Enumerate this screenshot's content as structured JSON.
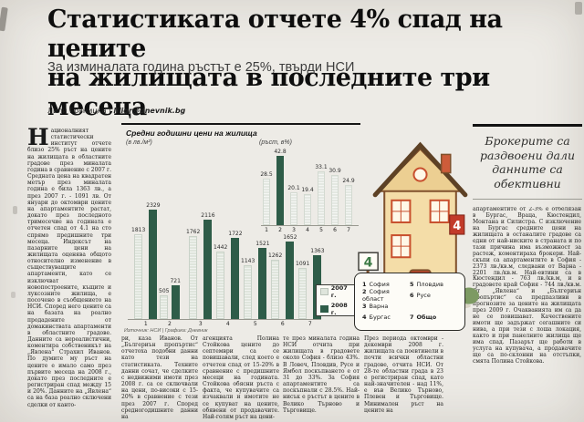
{
  "page": {
    "headline_line1": "Статистиката отчете 4% спад на цените",
    "headline_line2": "на жилищата в последните три месеца",
    "subtitle": "За изминалата година ръстът е 25%, твърди НСИ",
    "byline_name": "Лили Границка",
    "byline_sep": " | ",
    "byline_email": "liligr@dnevnik.bg"
  },
  "article": {
    "dropcap": "Н",
    "col1": "ационалният статистически институт отчете близо 25% ръст на цените на жилищата в областните градове през миналата година в сравнение с 2007 г. Средната цена на квадратен метър през миналата година е била 1363 лв., а през 2007 г. - 1091 лв. От януари до октомври цените на апартаментите растат, докато през последното тримесечие на годината е отчетен спад от 4.1 на сто спрямо предишните три месеца. Индексът на пазарните цени на жилищата оценява общото относително изменение в съществуващите апартаменти, като се изключват новопостроените, къщите и луксозните жилища, е посочено в съобщението на НСИ. Според него цените са на базата на реално продадените от домакинствата апартаменти в областните градове. Данните са нереалистични, коментира собственикът на „Явлена“ Страхил Иванов. По думите му ръст на цените е имало само през първите месеца на 2008 г., докато през последните е регистриран спад между 15 и 20%. Данните на „Явлена“ са на база реално сключени сделки от канто-",
    "col2": "ри, каза Иванов. От „Бългериън пропъртис“ отчетоха подобни данни като тези на статистиката. Техните данни сочат, че сделките с недвижими имоти през 2008 г. са се сключвали на цени, по-високи с 15-20% в сравнение с тези през 2007 г. Според средногодишните данни на",
    "col3": "агенцията Полина Стойкова цените до септември са се повишавали, след което е отчетен спад от 15-20% в сравнение с предишните месеци на годината. Стойкова обясни ръста с факта, че купувачите са изчаквали и имотите не се купуват на цените, обявени от продавачите. Най-голям ръст на цени-",
    "col4": "те през миналата година НСИ отчита при жилищата в градовете около София - близо 43%. В Ловеч, Пловдив, Русе и Ямбол поскъпването е от 31 до 33%. За София апартаментите са поскъпнали с 28.5%. Най-нисък е ръстът в цените в Велико Търново и Търговище.",
    "col5": "През периода октомври - декември 2008 г. жилищата са поевтинели в почти всички областни градове, отчита НСИ. От 28-те областни града в 23 е регистриран спад, като най-значителен - над 11%, е във Велико Търново, Плевен и Търговище. Минимален ръст на цените на"
  },
  "sidebar": {
    "pullquote": "Брокерите са раздвоени дали данните са обективни",
    "body": "апартаментите от 2-3% е отбелязан в Бургас, Враца, Кюстендил, Монтана и Силистра. С изключение на Бургас средните цени на жилищата в останалите градове са едни от най-ниските в страната и по тази причина има възможност за растеж, коментираха брокери. Най-скъпи са апартаментите в София - 2373 лв./кв.м, следвани от Варна - 2201 лв./кв.м. Най-евтини са в Кюстендил - 763 лв./кв.м, и в градовете край София - 744 лв./кв.м. От „Явлена“ и „Бългериън пропъртис“ са предпазливи в прогнозите за цените на жилищата през 2009 г. Очакванията им са да не се повишават. Качествените имоти ще задържат сегашните си нива, а при тези с лоша локация, както и при панелните жилища ще има спад. Пазарът ще работи в услуга на купувача, а продавачите ще са по-склонни на отстъпки, смята Полина Стойкова."
  },
  "chart_data": {
    "type": "bar",
    "title": "Средни годишни цени на жилища",
    "left_unit": "(в лв./м²)",
    "right_unit": "(ръст, в%)",
    "categories": [
      "1",
      "2",
      "3",
      "4",
      "5",
      "6",
      "7"
    ],
    "series": [
      {
        "name": "2007 г.",
        "values": [
          1813,
          505,
          1762,
          1442,
          1143,
          1262,
          1091
        ]
      },
      {
        "name": "2008 г.",
        "values": [
          2329,
          721,
          2116,
          1722,
          1521,
          1652,
          1363
        ]
      }
    ],
    "growth": {
      "name": "ръст, в%",
      "values": [
        28.5,
        42.8,
        20.1,
        19.4,
        33.1,
        30.9,
        24.9
      ],
      "highlight_index": 1
    },
    "legend_cities": [
      {
        "num": "1",
        "name": "София"
      },
      {
        "num": "2",
        "name": "София област"
      },
      {
        "num": "3",
        "name": "Варна"
      },
      {
        "num": "4",
        "name": "Бургас"
      },
      {
        "num": "5",
        "name": "Пловдив"
      },
      {
        "num": "6",
        "name": "Русе"
      },
      {
        "num": "7",
        "name": "Общо"
      }
    ],
    "source": "Източник: НСИ | Графика: Дневник",
    "layout": {
      "legend_position": "bottom-right",
      "grid": false,
      "left_ylim": [
        0,
        2329
      ],
      "right_ylim": [
        0,
        42.8
      ]
    },
    "colors": {
      "bar_2008": "#2e5c48",
      "bar_2007": "#dfe5dc",
      "growth_highlight": "#2e5c48"
    }
  },
  "house": {
    "sign_post": "4",
    "sign_banner": "4"
  }
}
